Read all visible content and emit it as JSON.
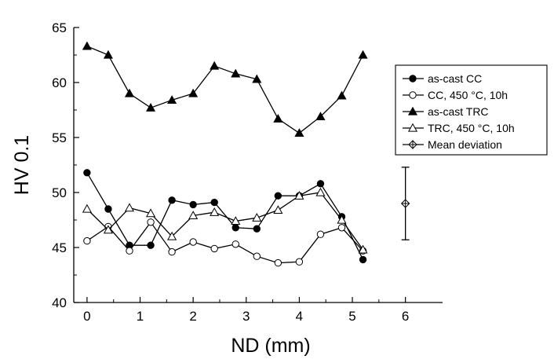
{
  "chart_data": {
    "type": "line",
    "xlabel": "ND (mm)",
    "ylabel": "HV 0.1",
    "xlim": [
      -0.25,
      6.7
    ],
    "ylim": [
      40,
      65
    ],
    "xticks": [
      0,
      1,
      2,
      3,
      4,
      5,
      6
    ],
    "yticks": [
      40,
      45,
      50,
      55,
      60,
      65
    ],
    "grid": false,
    "legend_position": "top-right",
    "series": [
      {
        "name": "as-cast CC",
        "marker": "filled-circle",
        "x": [
          0,
          0.4,
          0.8,
          1.2,
          1.6,
          2.0,
          2.4,
          2.8,
          3.2,
          3.6,
          4.0,
          4.4,
          4.8,
          5.2
        ],
        "values": [
          51.8,
          48.5,
          45.2,
          45.2,
          49.3,
          48.9,
          49.1,
          46.8,
          46.7,
          49.7,
          49.7,
          50.8,
          47.8,
          43.9
        ]
      },
      {
        "name": "CC, 450 °C, 10h",
        "marker": "open-circle",
        "x": [
          0,
          0.4,
          0.8,
          1.2,
          1.6,
          2.0,
          2.4,
          2.8,
          3.2,
          3.6,
          4.0,
          4.4,
          4.8,
          5.2
        ],
        "values": [
          45.6,
          46.9,
          44.7,
          47.3,
          44.6,
          45.5,
          44.9,
          45.3,
          44.2,
          43.6,
          43.7,
          46.2,
          46.8,
          44.7
        ]
      },
      {
        "name": "as-cast TRC",
        "marker": "filled-triangle",
        "x": [
          0,
          0.4,
          0.8,
          1.2,
          1.6,
          2.0,
          2.4,
          2.8,
          3.2,
          3.6,
          4.0,
          4.4,
          4.8,
          5.2
        ],
        "values": [
          63.3,
          62.5,
          59.0,
          57.7,
          58.4,
          59.0,
          61.5,
          60.8,
          60.3,
          56.7,
          55.4,
          56.9,
          58.8,
          62.5
        ]
      },
      {
        "name": "TRC, 450 °C, 10h",
        "marker": "open-triangle",
        "x": [
          0,
          0.4,
          0.8,
          1.2,
          1.6,
          2.0,
          2.4,
          2.8,
          3.2,
          3.6,
          4.0,
          4.4,
          4.8,
          5.2
        ],
        "values": [
          48.5,
          46.6,
          48.6,
          48.1,
          46.0,
          47.9,
          48.2,
          47.4,
          47.7,
          48.4,
          49.7,
          50.0,
          47.5,
          44.8
        ]
      }
    ],
    "mean_deviation": {
      "name": "Mean deviation",
      "marker": "open-diamond-cross",
      "x": 6.0,
      "y": 49.0,
      "error": 3.3
    }
  }
}
